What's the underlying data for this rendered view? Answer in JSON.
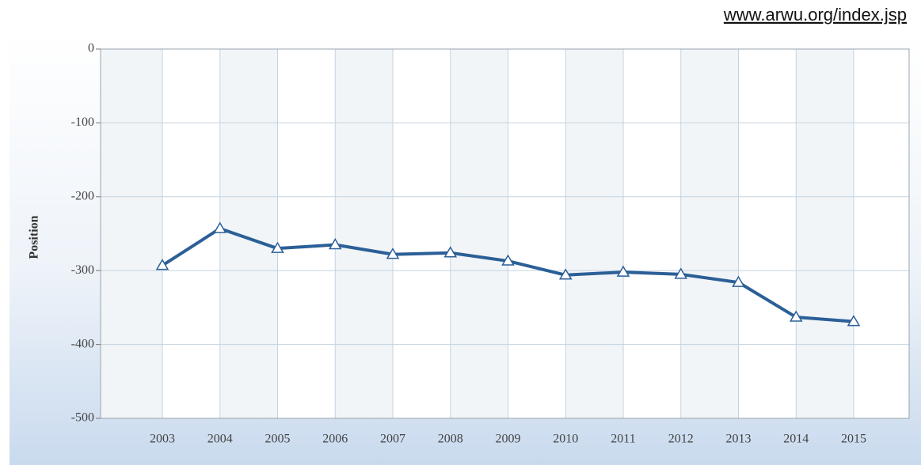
{
  "chart_data": {
    "type": "line",
    "source": "www.arwu.org/index.jsp",
    "ylabel": "Position",
    "categories": [
      "2003",
      "2004",
      "2005",
      "2006",
      "2007",
      "2008",
      "2009",
      "2010",
      "2011",
      "2012",
      "2013",
      "2014",
      "2015"
    ],
    "series": [
      {
        "name": "Position",
        "color": "#2b5f97",
        "values": [
          -293,
          -243,
          -270,
          -265,
          -278,
          -276,
          -287,
          -306,
          -302,
          -305,
          -316,
          -363,
          -369
        ]
      }
    ],
    "ylim": [
      -500,
      0
    ],
    "yticks": [
      0,
      -100,
      -200,
      -300,
      -400,
      -500
    ],
    "grid": true
  }
}
